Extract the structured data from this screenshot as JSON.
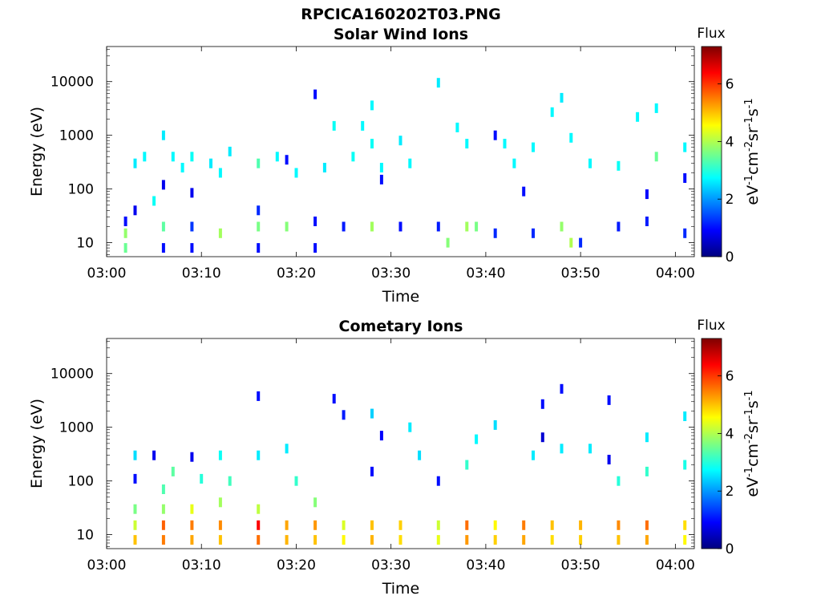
{
  "figure": {
    "title": "RPCICA160202T03.PNG"
  },
  "chart_data": [
    {
      "type": "heatmap",
      "title": "Solar Wind Ions",
      "xlabel": "Time",
      "ylabel": "Energy (eV)",
      "x_ticks": [
        "03:00",
        "03:10",
        "03:20",
        "03:30",
        "03:40",
        "03:50",
        "04:00"
      ],
      "xlim": [
        "03:00",
        "04:02"
      ],
      "y_scale": "log",
      "y_ticks": [
        "10",
        "100",
        "1000",
        "10000"
      ],
      "ylim": [
        5.5,
        45000
      ],
      "colorbar": {
        "title": "Flux",
        "label": "eV-1cm-2sr-1s-1",
        "range": [
          0,
          7.3
        ],
        "ticks": [
          "0",
          "2",
          "4",
          "6"
        ],
        "colormap": "jet"
      },
      "grid": false,
      "points": [
        [
          "03:02",
          8,
          3.5
        ],
        [
          "03:02",
          15,
          3.8
        ],
        [
          "03:02",
          25,
          1.0
        ],
        [
          "03:03",
          40,
          0.8
        ],
        [
          "03:03",
          300,
          2.6
        ],
        [
          "03:04",
          400,
          2.7
        ],
        [
          "03:05",
          60,
          2.8
        ],
        [
          "03:06",
          8,
          1.0
        ],
        [
          "03:06",
          20,
          3.4
        ],
        [
          "03:06",
          120,
          0.8
        ],
        [
          "03:06",
          1000,
          2.6
        ],
        [
          "03:07",
          400,
          2.7
        ],
        [
          "03:08",
          250,
          2.7
        ],
        [
          "03:09",
          8,
          1.0
        ],
        [
          "03:09",
          20,
          1.3
        ],
        [
          "03:09",
          400,
          2.8
        ],
        [
          "03:09",
          85,
          0.8
        ],
        [
          "03:11",
          300,
          2.6
        ],
        [
          "03:12",
          15,
          3.9
        ],
        [
          "03:12",
          200,
          2.7
        ],
        [
          "03:13",
          500,
          2.6
        ],
        [
          "03:16",
          8,
          1.0
        ],
        [
          "03:16",
          20,
          3.6
        ],
        [
          "03:16",
          40,
          1.2
        ],
        [
          "03:16",
          300,
          3.3
        ],
        [
          "03:18",
          400,
          2.7
        ],
        [
          "03:19",
          20,
          3.7
        ],
        [
          "03:19",
          350,
          1.0
        ],
        [
          "03:20",
          200,
          2.7
        ],
        [
          "03:22",
          8,
          1.0
        ],
        [
          "03:22",
          25,
          1.0
        ],
        [
          "03:22",
          5800,
          1.0
        ],
        [
          "03:23",
          250,
          2.6
        ],
        [
          "03:24",
          1500,
          2.8
        ],
        [
          "03:25",
          20,
          1.1
        ],
        [
          "03:26",
          400,
          2.8
        ],
        [
          "03:27",
          1500,
          2.7
        ],
        [
          "03:28",
          20,
          3.9
        ],
        [
          "03:28",
          700,
          2.8
        ],
        [
          "03:28",
          3600,
          2.7
        ],
        [
          "03:29",
          150,
          1.0
        ],
        [
          "03:29",
          250,
          2.7
        ],
        [
          "03:31",
          20,
          1.0
        ],
        [
          "03:31",
          800,
          2.6
        ],
        [
          "03:32",
          300,
          2.7
        ],
        [
          "03:35",
          9500,
          2.6
        ],
        [
          "03:35",
          20,
          1.1
        ],
        [
          "03:36",
          10,
          3.7
        ],
        [
          "03:37",
          1400,
          2.7
        ],
        [
          "03:38",
          20,
          3.9
        ],
        [
          "03:38",
          700,
          2.7
        ],
        [
          "03:39",
          20,
          3.6
        ],
        [
          "03:41",
          15,
          1.2
        ],
        [
          "03:41",
          1000,
          1.0
        ],
        [
          "03:42",
          700,
          2.7
        ],
        [
          "03:43",
          300,
          2.7
        ],
        [
          "03:44",
          90,
          1.0
        ],
        [
          "03:45",
          15,
          1.2
        ],
        [
          "03:45",
          600,
          2.7
        ],
        [
          "03:47",
          2700,
          2.7
        ],
        [
          "03:48",
          5000,
          2.6
        ],
        [
          "03:48",
          20,
          3.8
        ],
        [
          "03:49",
          10,
          4.0
        ],
        [
          "03:49",
          900,
          2.7
        ],
        [
          "03:50",
          10,
          1.2
        ],
        [
          "03:51",
          300,
          2.7
        ],
        [
          "03:54",
          20,
          1.1
        ],
        [
          "03:54",
          270,
          2.8
        ],
        [
          "03:56",
          2200,
          2.7
        ],
        [
          "03:57",
          80,
          0.9
        ],
        [
          "03:57",
          25,
          1.1
        ],
        [
          "03:58",
          400,
          3.5
        ],
        [
          "03:58",
          3200,
          2.7
        ],
        [
          "04:01",
          15,
          1.2
        ],
        [
          "04:01",
          160,
          1.0
        ],
        [
          "04:01",
          600,
          2.7
        ]
      ]
    },
    {
      "type": "heatmap",
      "title": "Cometary Ions",
      "xlabel": "Time",
      "ylabel": "Energy (eV)",
      "x_ticks": [
        "03:00",
        "03:10",
        "03:20",
        "03:30",
        "03:40",
        "03:50",
        "04:00"
      ],
      "xlim": [
        "03:00",
        "04:02"
      ],
      "y_scale": "log",
      "y_ticks": [
        "10",
        "100",
        "1000",
        "10000"
      ],
      "ylim": [
        5.5,
        45000
      ],
      "colorbar": {
        "title": "Flux",
        "label": "eV-1cm-2sr-1s-1",
        "range": [
          0,
          7.3
        ],
        "ticks": [
          "0",
          "2",
          "4",
          "6"
        ],
        "colormap": "jet"
      },
      "grid": false,
      "points": [
        [
          "03:03",
          8,
          5.0
        ],
        [
          "03:03",
          15,
          4.2
        ],
        [
          "03:03",
          30,
          3.6
        ],
        [
          "03:03",
          110,
          1.0
        ],
        [
          "03:03",
          300,
          2.5
        ],
        [
          "03:05",
          300,
          0.8
        ],
        [
          "03:06",
          8,
          5.5
        ],
        [
          "03:06",
          15,
          5.7
        ],
        [
          "03:06",
          30,
          3.8
        ],
        [
          "03:06",
          70,
          3.3
        ],
        [
          "03:07",
          150,
          3.4
        ],
        [
          "03:09",
          8,
          5.2
        ],
        [
          "03:09",
          15,
          5.5
        ],
        [
          "03:09",
          30,
          4.4
        ],
        [
          "03:09",
          280,
          0.8
        ],
        [
          "03:10",
          110,
          3.0
        ],
        [
          "03:12",
          8,
          5.0
        ],
        [
          "03:12",
          15,
          5.4
        ],
        [
          "03:12",
          40,
          3.9
        ],
        [
          "03:12",
          300,
          2.8
        ],
        [
          "03:13",
          100,
          3.2
        ],
        [
          "03:16",
          8,
          5.6
        ],
        [
          "03:16",
          15,
          6.4
        ],
        [
          "03:16",
          30,
          4.1
        ],
        [
          "03:16",
          300,
          2.6
        ],
        [
          "03:16",
          3800,
          1.0
        ],
        [
          "03:19",
          8,
          5.1
        ],
        [
          "03:19",
          15,
          5.2
        ],
        [
          "03:19",
          400,
          2.6
        ],
        [
          "03:20",
          100,
          3.1
        ],
        [
          "03:22",
          8,
          5.0
        ],
        [
          "03:22",
          15,
          5.3
        ],
        [
          "03:22",
          40,
          3.7
        ],
        [
          "03:24",
          3400,
          1.0
        ],
        [
          "03:25",
          8,
          4.6
        ],
        [
          "03:25",
          15,
          4.3
        ],
        [
          "03:25",
          1700,
          1.1
        ],
        [
          "03:28",
          8,
          5.1
        ],
        [
          "03:28",
          15,
          5.0
        ],
        [
          "03:28",
          1800,
          2.4
        ],
        [
          "03:28",
          150,
          1.0
        ],
        [
          "03:29",
          700,
          0.9
        ],
        [
          "03:31",
          8,
          4.8
        ],
        [
          "03:31",
          15,
          4.9
        ],
        [
          "03:32",
          1000,
          2.6
        ],
        [
          "03:33",
          300,
          2.5
        ],
        [
          "03:35",
          8,
          4.4
        ],
        [
          "03:35",
          15,
          4.2
        ],
        [
          "03:35",
          100,
          1.0
        ],
        [
          "03:38",
          8,
          5.3
        ],
        [
          "03:38",
          15,
          5.6
        ],
        [
          "03:38",
          200,
          3.1
        ],
        [
          "03:39",
          600,
          2.7
        ],
        [
          "03:41",
          8,
          4.9
        ],
        [
          "03:41",
          15,
          4.6
        ],
        [
          "03:41",
          1100,
          2.5
        ],
        [
          "03:44",
          8,
          5.2
        ],
        [
          "03:44",
          15,
          5.5
        ],
        [
          "03:45",
          300,
          2.6
        ],
        [
          "03:46",
          2700,
          1.0
        ],
        [
          "03:46",
          650,
          0.6
        ],
        [
          "03:47",
          8,
          4.8
        ],
        [
          "03:47",
          15,
          5.0
        ],
        [
          "03:48",
          5200,
          1.0
        ],
        [
          "03:48",
          400,
          2.6
        ],
        [
          "03:50",
          8,
          4.9
        ],
        [
          "03:50",
          15,
          5.1
        ],
        [
          "03:51",
          400,
          2.6
        ],
        [
          "03:53",
          3200,
          1.0
        ],
        [
          "03:53",
          250,
          0.8
        ],
        [
          "03:54",
          8,
          5.0
        ],
        [
          "03:54",
          15,
          5.4
        ],
        [
          "03:54",
          100,
          3.0
        ],
        [
          "03:57",
          8,
          5.2
        ],
        [
          "03:57",
          15,
          5.6
        ],
        [
          "03:57",
          150,
          3.1
        ],
        [
          "03:57",
          650,
          2.6
        ],
        [
          "04:01",
          8,
          4.6
        ],
        [
          "04:01",
          15,
          4.8
        ],
        [
          "04:01",
          1600,
          2.6
        ],
        [
          "04:01",
          200,
          2.9
        ]
      ]
    }
  ]
}
